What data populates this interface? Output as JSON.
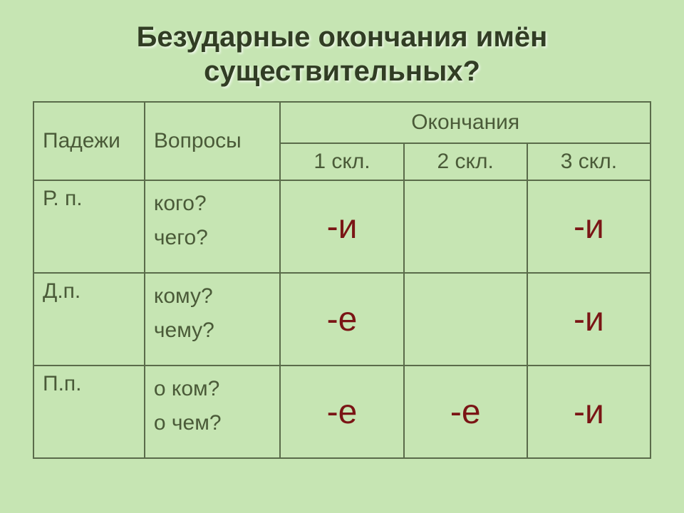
{
  "title_line1": "Безударные окончания имён",
  "title_line2": "существительных?",
  "headers": {
    "case": "Падежи",
    "questions": "Вопросы",
    "endings": "Окончания",
    "skl1": "1 скл.",
    "skl2": "2 скл.",
    "skl3": "3 скл."
  },
  "rows": [
    {
      "case": "Р. п.",
      "q1": "кого?",
      "q2": "чего?",
      "e1": "-и",
      "e2": "",
      "e3": "-и"
    },
    {
      "case": "Д.п.",
      "q1": "кому?",
      "q2": "чему?",
      "e1": "-е",
      "e2": "",
      "e3": "-и"
    },
    {
      "case": "П.п.",
      "q1": "о ком?",
      "q2": "о чем?",
      "e1": "-е",
      "e2": "-е",
      "e3": "-и"
    }
  ],
  "style": {
    "background_color": "#c6e5b3",
    "border_color": "#5a6b4a",
    "title_color": "#313d24",
    "title_fontsize": 40,
    "header_text_color": "#4a5a38",
    "header_fontsize": 30,
    "ending_text_color": "#7a1515",
    "ending_fontsize": 48,
    "question_text_color": "#4a5a38",
    "question_fontsize": 30,
    "case_text_color": "#4a5a38",
    "case_fontsize": 30
  }
}
